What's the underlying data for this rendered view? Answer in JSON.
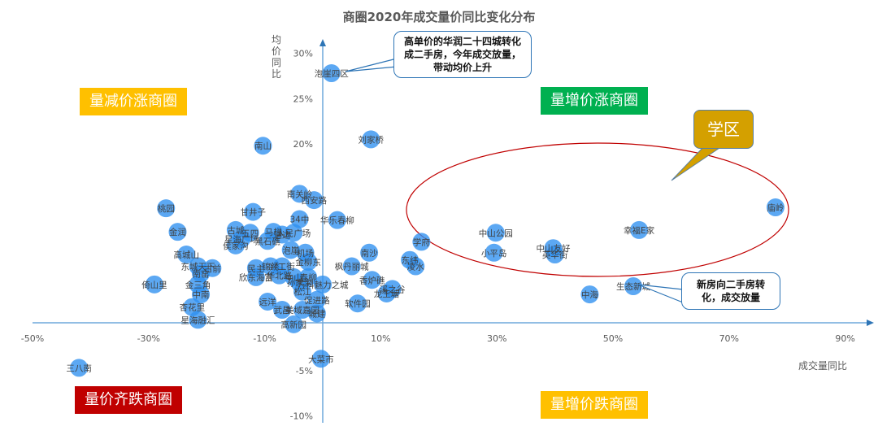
{
  "chart_data": {
    "type": "scatter",
    "title": "商圈2020年成交量价同比变化分布",
    "xlabel": "成交量同比",
    "ylabel": "均价同比",
    "xlim": [
      -50,
      90
    ],
    "ylim": [
      -10,
      32
    ],
    "x_ticks": [
      "-50%",
      "-30%",
      "-10%",
      "10%",
      "30%",
      "50%",
      "70%",
      "90%"
    ],
    "y_ticks": [
      "30%",
      "25%",
      "20%",
      "-5%",
      "-10%"
    ],
    "grid": false,
    "points": [
      {
        "name": "泡崖四区",
        "x": 1.5,
        "y": 27.8
      },
      {
        "name": "刘家桥",
        "x": 8.3,
        "y": 20.5
      },
      {
        "name": "南山",
        "x": -10.3,
        "y": 19.8
      },
      {
        "name": "南关岭",
        "x": -4.0,
        "y": 14.5
      },
      {
        "name": "西安路",
        "x": -1.5,
        "y": 13.8
      },
      {
        "name": "桃园",
        "x": -27.0,
        "y": 12.9
      },
      {
        "name": "甘井子",
        "x": -12.0,
        "y": 12.5
      },
      {
        "name": "34中",
        "x": -4.0,
        "y": 11.7
      },
      {
        "name": "华乐春柳",
        "x": 2.5,
        "y": 11.6
      },
      {
        "name": "金润",
        "x": -25.0,
        "y": 10.3
      },
      {
        "name": "古城",
        "x": -15.0,
        "y": 10.5
      },
      {
        "name": "五四",
        "x": -12.5,
        "y": 10.2
      },
      {
        "name": "马栏",
        "x": -8.5,
        "y": 10.3
      },
      {
        "name": "通达",
        "x": -7.0,
        "y": 10.0
      },
      {
        "name": "人民广场",
        "x": -5.0,
        "y": 10.2
      },
      {
        "name": "星海广场",
        "x": -14.0,
        "y": 9.5
      },
      {
        "name": "黑石礁",
        "x": -9.5,
        "y": 9.3
      },
      {
        "name": "侯家沟",
        "x": -15.0,
        "y": 8.8
      },
      {
        "name": "泡崖",
        "x": -5.5,
        "y": 8.3
      },
      {
        "name": "机场",
        "x": -3.0,
        "y": 8.0
      },
      {
        "name": "高城山",
        "x": -23.5,
        "y": 7.8
      },
      {
        "name": "南沙",
        "x": 8.0,
        "y": 8.0
      },
      {
        "name": "学府",
        "x": 17.0,
        "y": 9.2
      },
      {
        "name": "金柳东",
        "x": -2.5,
        "y": 7.0
      },
      {
        "name": "东城天下",
        "x": -21.5,
        "y": 6.5
      },
      {
        "name": "古前",
        "x": -19.0,
        "y": 6.3
      },
      {
        "name": "民主",
        "x": -11.5,
        "y": 6.3
      },
      {
        "name": "锦绣",
        "x": -9.0,
        "y": 6.5
      },
      {
        "name": "兴工街",
        "x": -7.0,
        "y": 6.5
      },
      {
        "name": "枫丹丽城",
        "x": 5.0,
        "y": 6.5
      },
      {
        "name": "东纬",
        "x": 15.0,
        "y": 7.2
      },
      {
        "name": "凌水",
        "x": 16.0,
        "y": 6.5
      },
      {
        "name": "南窑",
        "x": -21.0,
        "y": 5.7
      },
      {
        "name": "欣东海富",
        "x": -11.5,
        "y": 5.3
      },
      {
        "name": "华北路",
        "x": -7.5,
        "y": 5.5
      },
      {
        "name": "中山",
        "x": -5.0,
        "y": 5.3
      },
      {
        "name": "春柳",
        "x": -2.5,
        "y": 5.3
      },
      {
        "name": "倚山里",
        "x": -29.0,
        "y": 4.5
      },
      {
        "name": "金三角",
        "x": -21.5,
        "y": 4.5
      },
      {
        "name": "孙家沟",
        "x": -4.0,
        "y": 4.7
      },
      {
        "name": "万科魅力之城",
        "x": 0.0,
        "y": 4.5
      },
      {
        "name": "香炉礁",
        "x": 8.5,
        "y": 5.0
      },
      {
        "name": "溪之谷",
        "x": 12.0,
        "y": 4.0
      },
      {
        "name": "龙王塘",
        "x": 11.0,
        "y": 3.5
      },
      {
        "name": "松江",
        "x": -3.5,
        "y": 3.7
      },
      {
        "name": "中南",
        "x": -21.0,
        "y": 3.4
      },
      {
        "name": "促进路",
        "x": -1.0,
        "y": 2.8
      },
      {
        "name": "远洋",
        "x": -9.5,
        "y": 2.6
      },
      {
        "name": "软件园",
        "x": 6.0,
        "y": 2.4
      },
      {
        "name": "杏花里",
        "x": -22.5,
        "y": 2.0
      },
      {
        "name": "武昌",
        "x": -7.0,
        "y": 1.7
      },
      {
        "name": "美域嘉园",
        "x": -3.5,
        "y": 1.7
      },
      {
        "name": "城建",
        "x": -1.0,
        "y": 1.3
      },
      {
        "name": "星海融汇",
        "x": -21.5,
        "y": 0.6
      },
      {
        "name": "高新园",
        "x": -5.0,
        "y": 0.1
      },
      {
        "name": "大菜市",
        "x": -0.3,
        "y": -3.7
      },
      {
        "name": "三八南",
        "x": -42.0,
        "y": -4.7
      },
      {
        "name": "中山公园",
        "x": 29.8,
        "y": 10.2
      },
      {
        "name": "小平岛",
        "x": 29.5,
        "y": 8.0
      },
      {
        "name": "中山友好",
        "x": 39.7,
        "y": 8.5
      },
      {
        "name": "英华街",
        "x": 40.0,
        "y": 7.8
      },
      {
        "name": "幸福E家",
        "x": 54.5,
        "y": 10.5
      },
      {
        "name": "庙岭",
        "x": 78.0,
        "y": 13.0
      },
      {
        "name": "生态新城",
        "x": 53.5,
        "y": 4.3
      },
      {
        "name": "中海",
        "x": 46.0,
        "y": 3.4
      }
    ],
    "quadrant_labels": [
      {
        "text": "量减价涨商圈",
        "color": "#ffc000",
        "position": "top-left"
      },
      {
        "text": "量增价涨商圈",
        "color": "#00b050",
        "position": "top-right"
      },
      {
        "text": "量价齐跌商圈",
        "color": "#c00000",
        "position": "bottom-left"
      },
      {
        "text": "量增价跌商圈",
        "color": "#ffc000",
        "position": "bottom-right"
      }
    ],
    "annotations": [
      {
        "text": "高单价的华润二十四城转化成二手房，今年成交放量，带动均价上升",
        "target": "泡崖四区"
      },
      {
        "text": "新房向二手房转化，成交放量",
        "target": "生态新城"
      },
      {
        "text": "学区",
        "target": "school-district-ellipse"
      }
    ],
    "point_color": "#2e8ff0"
  },
  "header": {
    "title": "商圈2020年成交量价同比变化分布"
  },
  "axes": {
    "xlabel": "成交量同比",
    "ylabel": "均价同比"
  },
  "quadrants": {
    "tl": "量减价涨商圈",
    "tr": "量增价涨商圈",
    "bl": "量价齐跌商圈",
    "br": "量增价跌商圈"
  },
  "callouts": {
    "top": "高单价的华润二十四城转化成二手房，今年成交放量，带动均价上升",
    "right": "新房向二手房转化，成交放量",
    "school": "学区"
  }
}
